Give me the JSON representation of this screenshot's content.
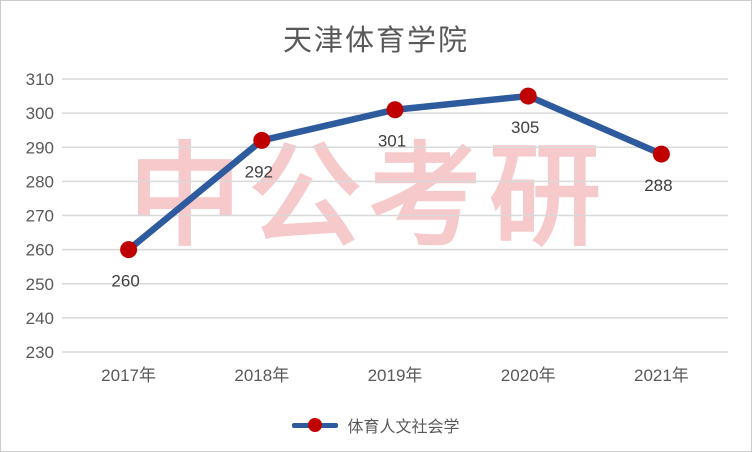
{
  "chart": {
    "title": "天津体育学院",
    "legend_label": "体育人文社会学"
  },
  "watermark": {
    "text": "中公考研"
  },
  "chart_data": {
    "type": "line",
    "title": "天津体育学院",
    "categories": [
      "2017年",
      "2018年",
      "2019年",
      "2020年",
      "2021年"
    ],
    "series": [
      {
        "name": "体育人文社会学",
        "values": [
          260,
          292,
          301,
          305,
          288
        ]
      }
    ],
    "xlabel": "",
    "ylabel": "",
    "ylim": [
      230,
      310
    ],
    "yticks": [
      310,
      300,
      290,
      280,
      270,
      260,
      250,
      240,
      230
    ],
    "grid": true,
    "legend_position": "bottom",
    "data_labels": true,
    "colors": {
      "line": "#2E5B9E",
      "marker": "#C00000",
      "gridline": "#D9D9D9",
      "axis_text": "#595959",
      "data_label_text": "#404040",
      "title_text": "#595959",
      "watermark_pink": "#F6C9CB"
    }
  }
}
